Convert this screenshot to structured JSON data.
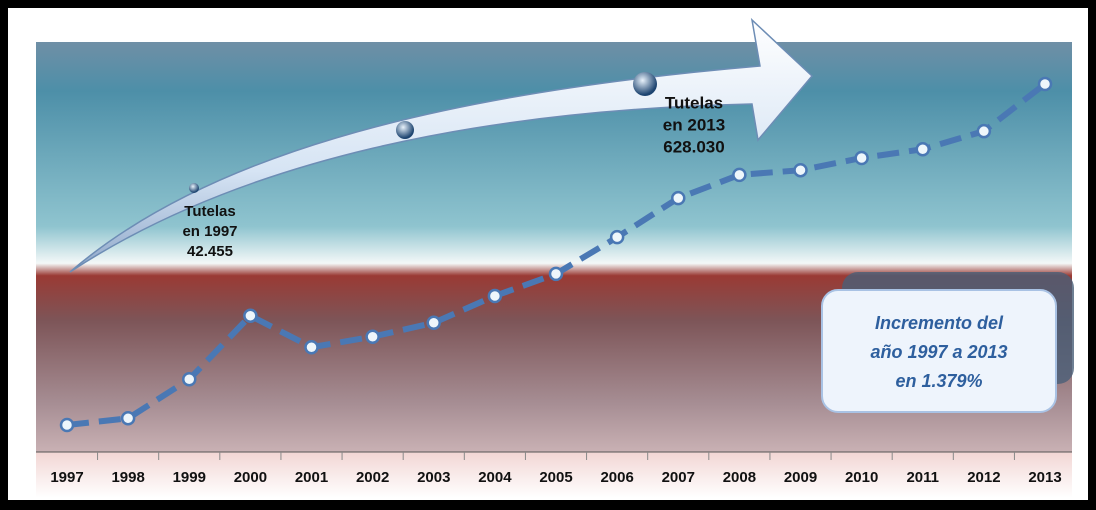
{
  "chart_data": {
    "type": "line",
    "categories": [
      "1997",
      "1998",
      "1999",
      "2000",
      "2001",
      "2002",
      "2003",
      "2004",
      "2005",
      "2006",
      "2007",
      "2008",
      "2009",
      "2010",
      "2011",
      "2012",
      "2013"
    ],
    "series": [
      {
        "color": "#4a78b4",
        "values": [
          42455,
          54000,
          121000,
          230000,
          176000,
          194000,
          218000,
          264000,
          302000,
          365000,
          432000,
          472000,
          480000,
          501000,
          516000,
          547000,
          628030
        ]
      }
    ],
    "annotations": [
      {
        "lines": [
          "Tutelas",
          "en 1997",
          "42.455"
        ]
      },
      {
        "lines": [
          "Tutelas",
          "en 2013",
          "628.030"
        ]
      }
    ],
    "callout": {
      "lines": [
        "Incremento del",
        "año 1997 a 2013",
        "en 1.379%"
      ]
    }
  }
}
